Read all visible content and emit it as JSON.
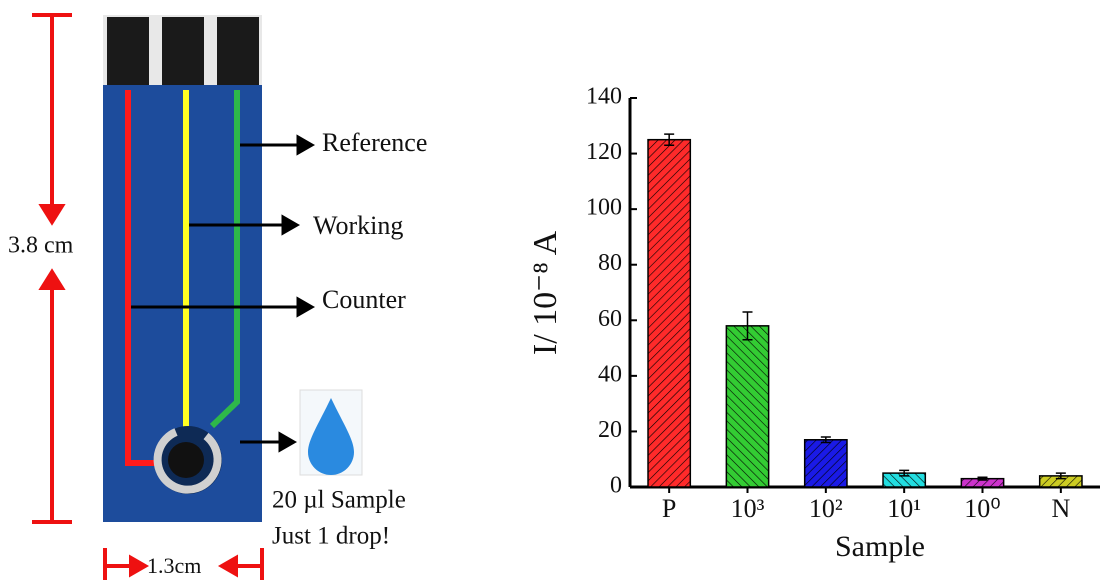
{
  "diagram": {
    "reference": "Reference",
    "working": "Working",
    "counter": "Counter",
    "length": "3.8 cm",
    "width": "1.3cm",
    "sample": "20 µl Sample",
    "drop": "Just 1 drop!"
  },
  "chart_data": {
    "type": "bar",
    "x_label": "Sample",
    "y_label": "I/ 10⁻⁸ A",
    "categories": [
      "P",
      "10³",
      "10²",
      "10¹",
      "10⁰",
      "N"
    ],
    "values": [
      125,
      58,
      17,
      5,
      3,
      4
    ],
    "errors": [
      2,
      5,
      1,
      1,
      0.5,
      1
    ],
    "colors": [
      "#ff2a2a",
      "#33cc33",
      "#1a1ae6",
      "#22dde0",
      "#cc33cc",
      "#cccc22"
    ],
    "ylim": [
      0,
      140
    ],
    "yticks": [
      0,
      20,
      40,
      60,
      80,
      100,
      120,
      140
    ]
  }
}
